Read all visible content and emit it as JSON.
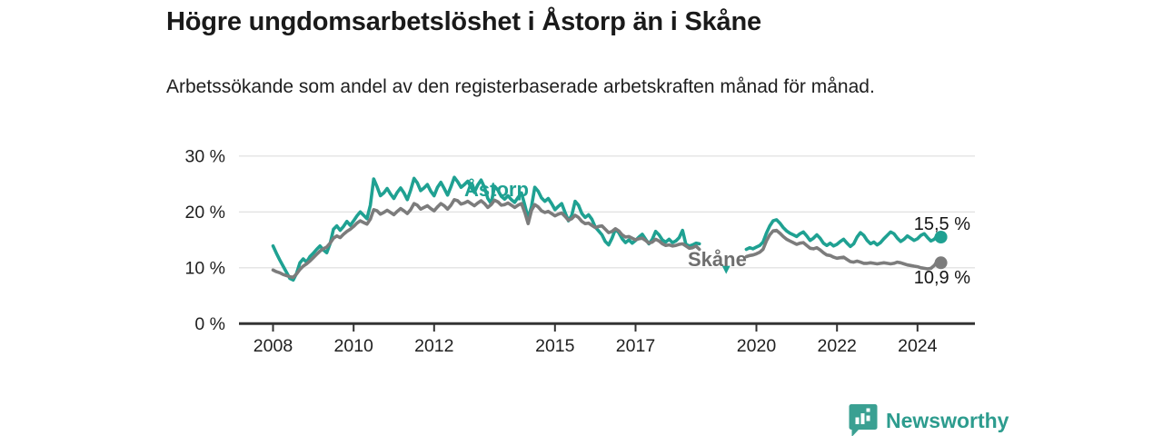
{
  "page": {
    "title": "Högre ungdomsarbetslöshet i Åstorp än i Skåne",
    "subtitle": "Arbetssökande som andel av den registerbaserade arbetskraften månad för månad.",
    "background_color": "#ffffff"
  },
  "footer": {
    "brand_name": "Newsworthy",
    "brand_color": "#2d9c8e",
    "logo_icon": "bar-chart-speech-bubble-icon"
  },
  "chart_data": {
    "type": "line",
    "title": "Högre ungdomsarbetslöshet i Åstorp än i Skåne",
    "subtitle": "Arbetssökande som andel av den registerbaserade arbetskraften månad för månad.",
    "unit": "%",
    "x_start_year": 2008,
    "x_start_month": 1,
    "x_step": "monthly",
    "x_end_year": 2024,
    "x_end_month": 8,
    "ylim": [
      0,
      30
    ],
    "grid": "horizontal-only",
    "legend_position": "inline-labels-on-lines",
    "yticks": [
      {
        "value": 0,
        "label": "0 %"
      },
      {
        "value": 10,
        "label": "10 %"
      },
      {
        "value": 20,
        "label": "20 %"
      },
      {
        "value": 30,
        "label": "30 %"
      }
    ],
    "xticks": [
      {
        "year": 2008,
        "label": "2008"
      },
      {
        "year": 2010,
        "label": "2010"
      },
      {
        "year": 2012,
        "label": "2012"
      },
      {
        "year": 2015,
        "label": "2015"
      },
      {
        "year": 2017,
        "label": "2017"
      },
      {
        "year": 2020,
        "label": "2020"
      },
      {
        "year": 2022,
        "label": "2022"
      },
      {
        "year": 2024,
        "label": "2024"
      }
    ],
    "data_gap_note": "both series have a gap from autumn 2018 to autumn 2019; Åstorp has one isolated point (triangle marker) in spring 2019",
    "series": [
      {
        "name": "Åstorp",
        "color": "#1fa192",
        "end_value": 15.5,
        "end_label": "15,5 %",
        "values": [
          13.9,
          12.6,
          11.4,
          10.3,
          9.2,
          8.1,
          7.8,
          9.0,
          10.9,
          11.6,
          11.0,
          12.0,
          12.6,
          13.3,
          13.9,
          13.2,
          12.7,
          14.3,
          16.9,
          17.5,
          16.7,
          17.4,
          18.3,
          17.6,
          18.4,
          19.3,
          20.0,
          19.4,
          18.8,
          21.2,
          25.9,
          24.5,
          22.9,
          23.4,
          24.2,
          23.2,
          22.4,
          23.5,
          24.3,
          23.4,
          22.2,
          23.9,
          26.0,
          25.2,
          23.8,
          24.3,
          24.9,
          23.7,
          22.9,
          24.4,
          25.3,
          24.2,
          23.0,
          24.5,
          26.2,
          25.4,
          24.4,
          24.9,
          25.5,
          24.4,
          23.5,
          24.8,
          25.7,
          24.4,
          22.4,
          21.5,
          24.6,
          23.9,
          22.8,
          22.3,
          22.9,
          22.2,
          21.7,
          22.6,
          23.4,
          21.2,
          18.9,
          21.0,
          24.4,
          23.7,
          22.5,
          21.9,
          22.4,
          21.5,
          20.4,
          21.0,
          21.5,
          19.9,
          18.4,
          19.4,
          21.9,
          21.2,
          19.7,
          19.0,
          19.5,
          18.7,
          17.3,
          16.6,
          15.9,
          14.7,
          14.1,
          15.3,
          16.9,
          16.3,
          15.2,
          14.5,
          15.0,
          14.4,
          14.9,
          15.5,
          16.0,
          15.1,
          14.3,
          15.1,
          16.5,
          15.9,
          15.0,
          14.6,
          15.1,
          14.5,
          14.8,
          15.4,
          16.7,
          14.2,
          13.9,
          14.1,
          14.4,
          14.3,
          null,
          null,
          null,
          null,
          null,
          null,
          null,
          9.7,
          null,
          null,
          null,
          null,
          null,
          13.3,
          13.6,
          13.4,
          13.7,
          14.0,
          14.6,
          16.2,
          17.5,
          18.4,
          18.6,
          18.0,
          17.2,
          16.6,
          16.2,
          15.9,
          15.6,
          16.1,
          16.4,
          15.7,
          14.9,
          15.3,
          15.9,
          15.3,
          14.4,
          14.0,
          14.4,
          13.9,
          14.2,
          14.7,
          15.1,
          14.4,
          13.8,
          14.3,
          15.5,
          16.3,
          15.8,
          14.9,
          14.3,
          14.6,
          14.1,
          14.5,
          15.2,
          15.8,
          16.4,
          16.1,
          15.3,
          14.7,
          15.1,
          15.7,
          15.3,
          14.9,
          15.2,
          15.8,
          16.1,
          15.4,
          14.8,
          15.1,
          15.9,
          15.5
        ]
      },
      {
        "name": "Skåne",
        "color": "#7c7c7c",
        "end_value": 10.9,
        "end_label": "10,9 %",
        "values": [
          9.6,
          9.3,
          9.1,
          8.8,
          8.6,
          8.4,
          8.3,
          8.9,
          9.7,
          10.3,
          10.7,
          11.2,
          11.8,
          12.4,
          13.0,
          13.4,
          13.7,
          14.4,
          15.3,
          15.7,
          15.4,
          16.0,
          16.5,
          16.9,
          17.4,
          18.0,
          18.4,
          18.1,
          17.8,
          18.7,
          20.4,
          20.2,
          19.6,
          19.9,
          20.3,
          19.9,
          19.5,
          20.1,
          20.6,
          20.2,
          19.7,
          20.4,
          21.5,
          21.2,
          20.5,
          20.8,
          21.1,
          20.6,
          20.2,
          20.9,
          21.5,
          21.1,
          20.5,
          21.2,
          22.2,
          22.0,
          21.4,
          21.6,
          21.9,
          21.5,
          21.1,
          21.6,
          22.0,
          21.5,
          20.8,
          21.3,
          22.1,
          21.8,
          21.2,
          21.3,
          21.6,
          21.2,
          20.8,
          21.2,
          21.5,
          19.9,
          17.9,
          20.3,
          21.3,
          20.9,
          20.2,
          19.9,
          20.1,
          19.7,
          19.3,
          19.6,
          19.8,
          19.2,
          18.5,
          18.8,
          19.4,
          19.0,
          18.3,
          17.9,
          18.0,
          17.6,
          17.2,
          17.4,
          17.5,
          16.9,
          16.3,
          16.5,
          17.0,
          16.6,
          15.9,
          15.5,
          15.6,
          15.3,
          15.0,
          15.2,
          15.3,
          14.9,
          14.4,
          14.6,
          15.1,
          14.8,
          14.3,
          14.0,
          14.1,
          13.9,
          14.0,
          14.2,
          14.3,
          13.9,
          13.5,
          13.6,
          13.9,
          13.3,
          null,
          null,
          null,
          null,
          null,
          null,
          null,
          null,
          null,
          null,
          null,
          null,
          null,
          12.0,
          12.2,
          12.3,
          12.5,
          12.8,
          13.3,
          14.8,
          15.9,
          16.6,
          16.7,
          16.2,
          15.6,
          15.1,
          14.8,
          14.5,
          14.2,
          14.4,
          14.5,
          14.0,
          13.5,
          13.4,
          13.6,
          13.2,
          12.7,
          12.3,
          12.2,
          11.9,
          11.7,
          11.8,
          11.9,
          11.5,
          11.1,
          11.0,
          11.2,
          11.0,
          10.8,
          10.8,
          10.9,
          10.8,
          10.7,
          10.8,
          10.9,
          10.8,
          10.7,
          10.8,
          11.0,
          10.9,
          10.7,
          10.5,
          10.4,
          10.3,
          10.2,
          10.0,
          9.9,
          9.8,
          9.9,
          10.4,
          11.3,
          10.9
        ]
      }
    ]
  }
}
